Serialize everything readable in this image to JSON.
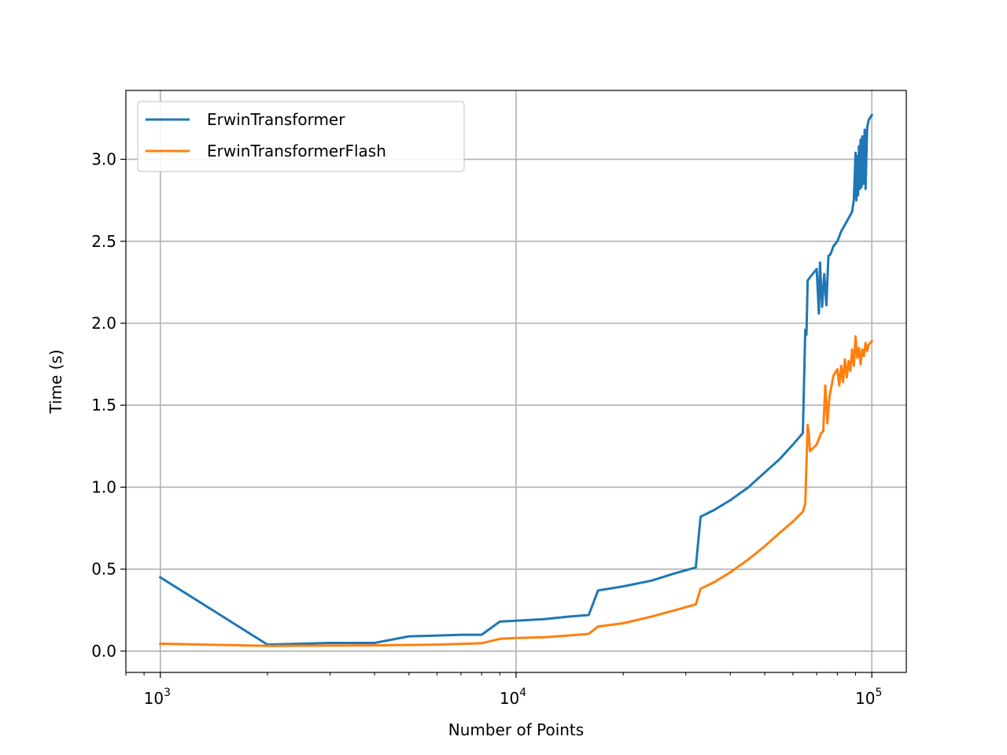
{
  "chart_data": {
    "type": "line",
    "title": "",
    "xlabel": "Number of Points",
    "ylabel": "Time (s)",
    "xscale": "log",
    "xlim": [
      800,
      125000
    ],
    "ylim": [
      -0.13,
      3.42
    ],
    "grid": true,
    "legend": "upper left",
    "x_ticks": [
      {
        "value": 1000,
        "base": "10",
        "exp": "3"
      },
      {
        "value": 10000,
        "base": "10",
        "exp": "4"
      },
      {
        "value": 100000,
        "base": "10",
        "exp": "5"
      }
    ],
    "y_ticks": [
      {
        "value": 0.0,
        "label": "0.0"
      },
      {
        "value": 0.5,
        "label": "0.5"
      },
      {
        "value": 1.0,
        "label": "1.0"
      },
      {
        "value": 1.5,
        "label": "1.5"
      },
      {
        "value": 2.0,
        "label": "2.0"
      },
      {
        "value": 2.5,
        "label": "2.5"
      },
      {
        "value": 3.0,
        "label": "3.0"
      }
    ],
    "series": [
      {
        "name": "ErwinTransformer",
        "color": "#1f77b4",
        "x": [
          1000,
          2000,
          3000,
          4000,
          5000,
          6000,
          7000,
          8000,
          9000,
          10000,
          12000,
          14000,
          16000,
          17000,
          20000,
          24000,
          28000,
          32000,
          33000,
          36000,
          40000,
          45000,
          50000,
          55000,
          60000,
          64000,
          65000,
          65500,
          66000,
          67000,
          70000,
          71000,
          71500,
          72500,
          73500,
          74500,
          75500,
          76500,
          78000,
          80000,
          82000,
          85000,
          88000,
          89000,
          90000,
          90500,
          91000,
          91500,
          92000,
          92500,
          93000,
          93500,
          94000,
          94500,
          95000,
          95500,
          96000,
          97000,
          98000,
          100000
        ],
        "y": [
          0.45,
          0.04,
          0.05,
          0.05,
          0.09,
          0.095,
          0.1,
          0.1,
          0.18,
          0.185,
          0.195,
          0.21,
          0.22,
          0.37,
          0.395,
          0.43,
          0.475,
          0.51,
          0.82,
          0.86,
          0.92,
          1.0,
          1.09,
          1.17,
          1.26,
          1.33,
          1.96,
          1.93,
          2.26,
          2.28,
          2.33,
          2.06,
          2.37,
          2.1,
          2.3,
          2.11,
          2.41,
          2.42,
          2.47,
          2.5,
          2.56,
          2.62,
          2.68,
          2.75,
          3.04,
          2.75,
          3.02,
          2.78,
          3.08,
          2.82,
          3.12,
          2.83,
          3.14,
          2.85,
          2.95,
          3.18,
          2.82,
          3.19,
          3.24,
          3.27
        ]
      },
      {
        "name": "ErwinTransformerFlash",
        "color": "#ff7f0e",
        "x": [
          1000,
          2000,
          4000,
          6000,
          8000,
          9000,
          10000,
          12000,
          14000,
          16000,
          17000,
          20000,
          24000,
          28000,
          32000,
          33000,
          36000,
          40000,
          45000,
          50000,
          55000,
          60000,
          64000,
          65000,
          66000,
          66500,
          67000,
          70000,
          72000,
          73000,
          74000,
          75000,
          76000,
          78000,
          80000,
          81000,
          82000,
          83000,
          84000,
          85000,
          86000,
          87000,
          88000,
          89000,
          90000,
          91000,
          92000,
          93000,
          94000,
          95000,
          96000,
          97000,
          98000,
          100000
        ],
        "y": [
          0.045,
          0.032,
          0.035,
          0.04,
          0.048,
          0.075,
          0.08,
          0.085,
          0.095,
          0.105,
          0.15,
          0.17,
          0.21,
          0.25,
          0.285,
          0.38,
          0.42,
          0.48,
          0.56,
          0.64,
          0.72,
          0.79,
          0.85,
          0.9,
          1.38,
          1.33,
          1.22,
          1.26,
          1.33,
          1.34,
          1.62,
          1.39,
          1.55,
          1.68,
          1.72,
          1.62,
          1.74,
          1.64,
          1.78,
          1.67,
          1.77,
          1.71,
          1.84,
          1.74,
          1.92,
          1.79,
          1.85,
          1.75,
          1.84,
          1.8,
          1.88,
          1.83,
          1.87,
          1.89
        ]
      }
    ]
  }
}
